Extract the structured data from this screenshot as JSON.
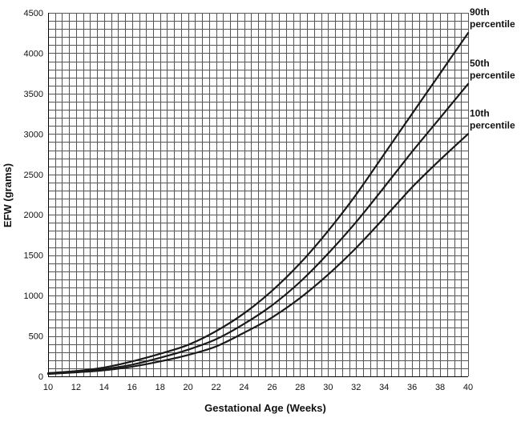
{
  "chart_data": {
    "type": "line",
    "title": "",
    "xlabel": "Gestational Age (Weeks)",
    "ylabel": "EFW (grams)",
    "xlim": [
      10,
      40
    ],
    "ylim": [
      0,
      4500
    ],
    "x_ticks": [
      10,
      12,
      14,
      16,
      18,
      20,
      22,
      24,
      26,
      28,
      30,
      32,
      34,
      36,
      38,
      40
    ],
    "y_ticks": [
      0,
      500,
      1000,
      1500,
      2000,
      2500,
      3000,
      3500,
      4000,
      4500
    ],
    "x_grid_step": 0.5,
    "y_grid_step": 100,
    "grid": true,
    "legend": "none",
    "x": [
      10,
      12,
      14,
      16,
      18,
      20,
      22,
      24,
      26,
      28,
      30,
      32,
      34,
      36,
      38,
      40
    ],
    "series": [
      {
        "label_lines": [
          "90th",
          "percentile"
        ],
        "values": [
          40,
          65,
          110,
          185,
          280,
          390,
          560,
          780,
          1060,
          1400,
          1800,
          2250,
          2750,
          3250,
          3750,
          4250
        ]
      },
      {
        "label_lines": [
          "50th",
          "percentile"
        ],
        "values": [
          35,
          55,
          90,
          145,
          230,
          330,
          460,
          650,
          880,
          1170,
          1520,
          1910,
          2340,
          2780,
          3200,
          3620
        ]
      },
      {
        "label_lines": [
          "10th",
          "percentile"
        ],
        "values": [
          30,
          50,
          75,
          120,
          185,
          265,
          370,
          540,
          730,
          970,
          1260,
          1590,
          1960,
          2340,
          2680,
          3000
        ]
      }
    ]
  }
}
